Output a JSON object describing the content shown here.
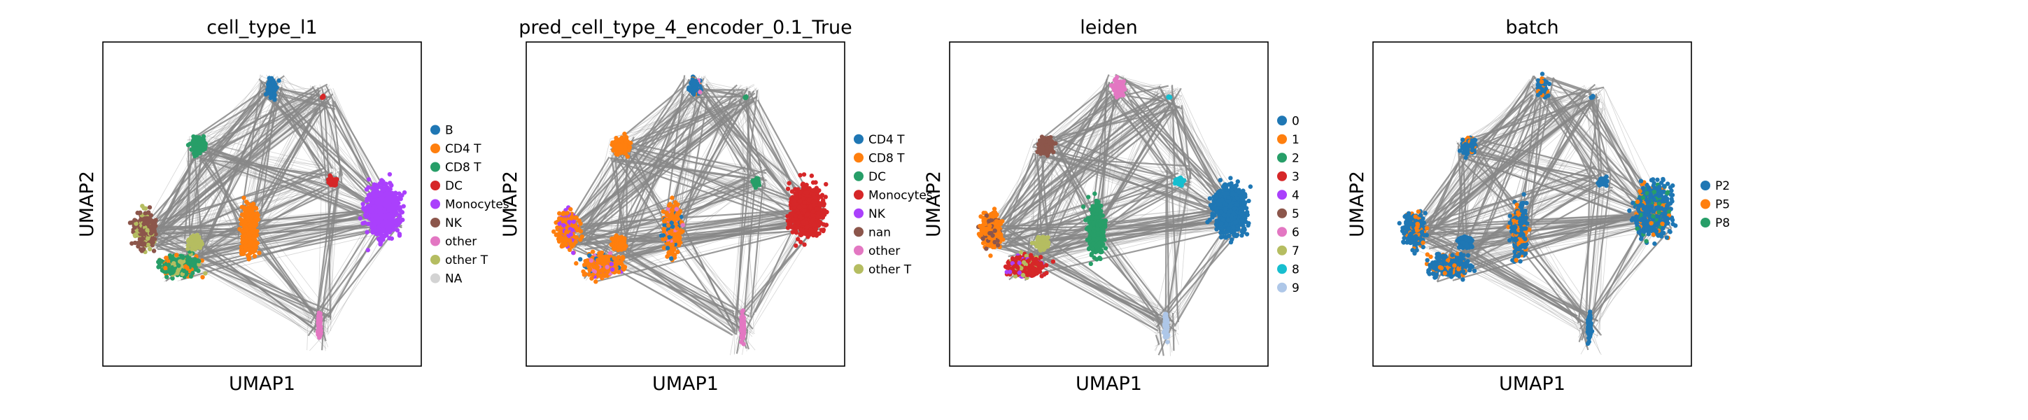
{
  "figure": {
    "common": {
      "xlabel": "UMAP1",
      "ylabel": "UMAP2"
    },
    "panels": [
      {
        "title": "cell_type_l1",
        "legend": [
          {
            "label": "B",
            "color": "#1f77b4"
          },
          {
            "label": "CD4 T",
            "color": "#ff7f0e"
          },
          {
            "label": "CD8 T",
            "color": "#279e68"
          },
          {
            "label": "DC",
            "color": "#d62728"
          },
          {
            "label": "Monocytes",
            "color": "#aa40fc"
          },
          {
            "label": "NK",
            "color": "#8c564b"
          },
          {
            "label": "other",
            "color": "#e377c2"
          },
          {
            "label": "other T",
            "color": "#b5bd61"
          },
          {
            "label": "NA",
            "color": "#d3d3d3"
          }
        ]
      },
      {
        "title": "pred_cell_type_4_encoder_0.1_True",
        "legend": [
          {
            "label": "CD4 T",
            "color": "#1f77b4"
          },
          {
            "label": "CD8 T",
            "color": "#ff7f0e"
          },
          {
            "label": "DC",
            "color": "#279e68"
          },
          {
            "label": "Monocytes",
            "color": "#d62728"
          },
          {
            "label": "NK",
            "color": "#aa40fc"
          },
          {
            "label": "nan",
            "color": "#8c564b"
          },
          {
            "label": "other",
            "color": "#e377c2"
          },
          {
            "label": "other T",
            "color": "#b5bd61"
          }
        ]
      },
      {
        "title": "leiden",
        "legend": [
          {
            "label": "0",
            "color": "#1f77b4"
          },
          {
            "label": "1",
            "color": "#ff7f0e"
          },
          {
            "label": "2",
            "color": "#279e68"
          },
          {
            "label": "3",
            "color": "#d62728"
          },
          {
            "label": "4",
            "color": "#aa40fc"
          },
          {
            "label": "5",
            "color": "#8c564b"
          },
          {
            "label": "6",
            "color": "#e377c2"
          },
          {
            "label": "7",
            "color": "#b5bd61"
          },
          {
            "label": "8",
            "color": "#17becf"
          },
          {
            "label": "9",
            "color": "#aec7e8"
          }
        ]
      },
      {
        "title": "batch",
        "legend": [
          {
            "label": "P2",
            "color": "#1f77b4"
          },
          {
            "label": "P5",
            "color": "#ff7f0e"
          },
          {
            "label": "P8",
            "color": "#279e68"
          }
        ]
      }
    ]
  },
  "chart_data": [
    {
      "type": "scatter",
      "title": "cell_type_l1",
      "xlabel": "UMAP1",
      "ylabel": "UMAP2",
      "grid": false,
      "legend_position": "right",
      "overlay": "PAGA graph edges (gray)",
      "clusters": [
        {
          "name": "B",
          "color": "#1f77b4"
        },
        {
          "name": "CD4 T",
          "color": "#ff7f0e"
        },
        {
          "name": "CD8 T",
          "color": "#279e68"
        },
        {
          "name": "DC",
          "color": "#d62728"
        },
        {
          "name": "Monocytes",
          "color": "#aa40fc"
        },
        {
          "name": "NK",
          "color": "#8c564b"
        },
        {
          "name": "other",
          "color": "#e377c2"
        },
        {
          "name": "other T",
          "color": "#b5bd61"
        },
        {
          "name": "NA",
          "color": "#d3d3d3"
        }
      ]
    },
    {
      "type": "scatter",
      "title": "pred_cell_type_4_encoder_0.1_True",
      "xlabel": "UMAP1",
      "ylabel": "UMAP2",
      "grid": false,
      "legend_position": "right",
      "overlay": "PAGA graph edges (gray)",
      "clusters": [
        {
          "name": "CD4 T",
          "color": "#1f77b4"
        },
        {
          "name": "CD8 T",
          "color": "#ff7f0e"
        },
        {
          "name": "DC",
          "color": "#279e68"
        },
        {
          "name": "Monocytes",
          "color": "#d62728"
        },
        {
          "name": "NK",
          "color": "#aa40fc"
        },
        {
          "name": "nan",
          "color": "#8c564b"
        },
        {
          "name": "other",
          "color": "#e377c2"
        },
        {
          "name": "other T",
          "color": "#b5bd61"
        }
      ]
    },
    {
      "type": "scatter",
      "title": "leiden",
      "xlabel": "UMAP1",
      "ylabel": "UMAP2",
      "grid": false,
      "legend_position": "right",
      "overlay": "PAGA graph edges (gray)",
      "clusters": [
        {
          "name": "0",
          "color": "#1f77b4"
        },
        {
          "name": "1",
          "color": "#ff7f0e"
        },
        {
          "name": "2",
          "color": "#279e68"
        },
        {
          "name": "3",
          "color": "#d62728"
        },
        {
          "name": "4",
          "color": "#aa40fc"
        },
        {
          "name": "5",
          "color": "#8c564b"
        },
        {
          "name": "6",
          "color": "#e377c2"
        },
        {
          "name": "7",
          "color": "#b5bd61"
        },
        {
          "name": "8",
          "color": "#17becf"
        },
        {
          "name": "9",
          "color": "#aec7e8"
        }
      ]
    },
    {
      "type": "scatter",
      "title": "batch",
      "xlabel": "UMAP1",
      "ylabel": "UMAP2",
      "grid": false,
      "legend_position": "right",
      "overlay": "PAGA graph edges (gray)",
      "clusters": [
        {
          "name": "P2",
          "color": "#1f77b4"
        },
        {
          "name": "P5",
          "color": "#ff7f0e"
        },
        {
          "name": "P8",
          "color": "#279e68"
        }
      ]
    }
  ]
}
